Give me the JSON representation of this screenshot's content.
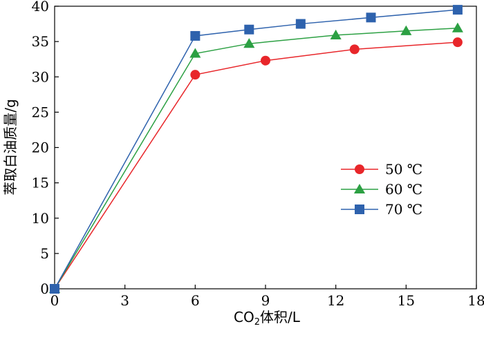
{
  "chart_data": {
    "type": "line",
    "title": "",
    "xlabel_main": "CO",
    "xlabel_sub": "2",
    "xlabel_tail": "体积/L",
    "ylabel": "萃取白油质量/g",
    "xlim": [
      0,
      18
    ],
    "ylim": [
      0,
      40
    ],
    "xticks": [
      0,
      3,
      6,
      9,
      12,
      15,
      18
    ],
    "yticks": [
      0,
      5,
      10,
      15,
      20,
      25,
      30,
      35,
      40
    ],
    "xtick_labels": [
      "0",
      "3",
      "6",
      "9",
      "12",
      "15",
      "18"
    ],
    "ytick_labels": [
      "0",
      "5",
      "10",
      "15",
      "20",
      "25",
      "30",
      "35",
      "40"
    ],
    "legend_position": "center-right",
    "series": [
      {
        "name": "50 ℃",
        "color": "#e8262a",
        "marker": "circle",
        "x": [
          0,
          6,
          9,
          12.8,
          17.2
        ],
        "y": [
          0,
          30.3,
          32.3,
          33.9,
          34.9
        ]
      },
      {
        "name": "60 ℃",
        "color": "#2ca043",
        "marker": "triangle",
        "x": [
          0,
          6,
          8.3,
          12,
          15,
          17.2
        ],
        "y": [
          0,
          33.3,
          34.7,
          35.9,
          36.5,
          36.9
        ]
      },
      {
        "name": "70 ℃",
        "color": "#2e62ad",
        "marker": "square",
        "x": [
          0,
          6,
          8.3,
          10.5,
          13.5,
          17.2
        ],
        "y": [
          0,
          35.8,
          36.7,
          37.5,
          38.4,
          39.5
        ]
      }
    ]
  }
}
